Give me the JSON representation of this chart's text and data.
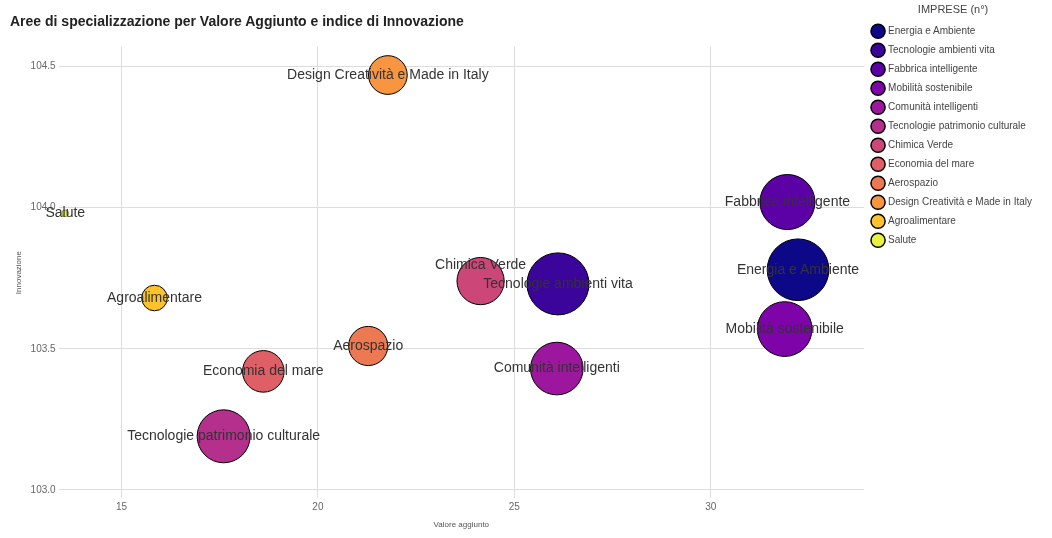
{
  "chart_data": {
    "type": "bubble",
    "title": "Aree di specializzazione per Valore Aggiunto e indice di Innovazione",
    "xlabel": "Valore aggiunto",
    "ylabel": "Innovazione",
    "legend_title": "IMPRESE (n°)",
    "legend": "right",
    "grid": true,
    "xlim": [
      13.4,
      33.9
    ],
    "xticks": [
      15,
      20,
      25,
      30
    ],
    "ylim": [
      102.97,
      104.57
    ],
    "yticks": [
      {
        "value": 103,
        "label": "103.0"
      },
      {
        "value": 103.5,
        "label": "103.5"
      },
      {
        "value": 104,
        "label": "104.0"
      },
      {
        "value": 104.5,
        "label": "104.5"
      }
    ],
    "series": [
      {
        "name": "Energia e Ambiente",
        "color": "#0d0887",
        "x": [
          32.22
        ],
        "values": [
          103.78
        ],
        "sizes": [
          0.99
        ]
      },
      {
        "name": "Tecnologie ambienti vita",
        "color": "#3b049a",
        "x": [
          26.11
        ],
        "values": [
          103.73
        ],
        "sizes": [
          1
        ]
      },
      {
        "name": "Fabbrica intelligente",
        "color": "#5c01a6",
        "x": [
          31.95
        ],
        "values": [
          104.02
        ],
        "sizes": [
          0.79
        ]
      },
      {
        "name": "Mobilità sostenibile",
        "color": "#7e03a8",
        "x": [
          31.88
        ],
        "values": [
          103.57
        ],
        "sizes": [
          0.78
        ]
      },
      {
        "name": "Comunità intelligenti",
        "color": "#9c179e",
        "x": [
          26.08
        ],
        "values": [
          103.43
        ],
        "sizes": [
          0.72
        ]
      },
      {
        "name": "Tecnologie patrimonio culturale",
        "color": "#b52f8c",
        "x": [
          17.6
        ],
        "values": [
          103.19
        ],
        "sizes": [
          0.73
        ]
      },
      {
        "name": "Chimica Verde",
        "color": "#cc4778",
        "x": [
          24.14
        ],
        "values": [
          103.74
        ],
        "sizes": [
          0.58
        ]
      },
      {
        "name": "Economia del mare",
        "color": "#de5f65",
        "x": [
          18.61
        ],
        "values": [
          103.42
        ],
        "sizes": [
          0.45
        ]
      },
      {
        "name": "Aerospazio",
        "color": "#ed7953",
        "x": [
          21.28
        ],
        "values": [
          103.51
        ],
        "sizes": [
          0.4
        ]
      },
      {
        "name": "Design Creatività e Made in Italy",
        "color": "#f89540",
        "x": [
          21.78
        ],
        "values": [
          104.47
        ],
        "sizes": [
          0.39
        ]
      },
      {
        "name": "Agroalimentare",
        "color": "#fdc328",
        "x": [
          15.84
        ],
        "values": [
          103.68
        ],
        "sizes": [
          0.17
        ]
      },
      {
        "name": "Salute",
        "color": "#e8f040",
        "x": [
          13.57
        ],
        "values": [
          103.98
        ],
        "sizes": [
          0.012
        ]
      }
    ]
  }
}
